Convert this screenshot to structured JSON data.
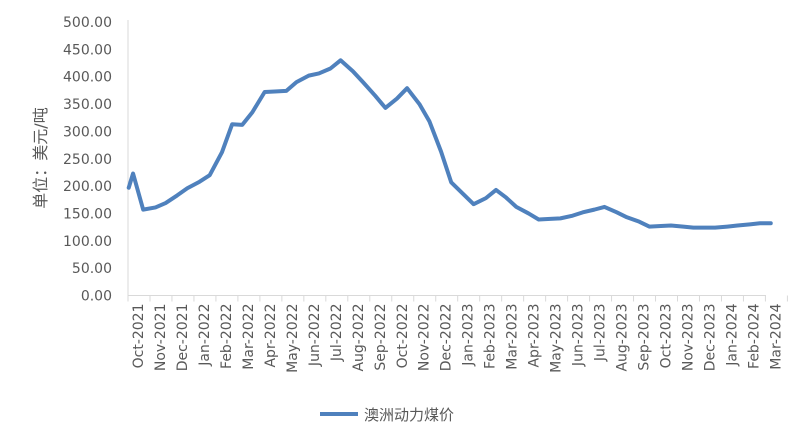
{
  "chart_data": {
    "type": "line",
    "ylabel": "单位：美元/吨",
    "ylim": [
      0,
      500
    ],
    "y_ticks": [
      "0.00",
      "50.00",
      "100.00",
      "150.00",
      "200.00",
      "250.00",
      "300.00",
      "350.00",
      "400.00",
      "450.00",
      "500.00"
    ],
    "grid": false,
    "legend_position": "bottom",
    "categories": [
      "Oct-2021",
      "Nov-2021",
      "Dec-2021",
      "Jan-2022",
      "Feb-2022",
      "Mar-2022",
      "Apr-2022",
      "May-2022",
      "Jun-2022",
      "Jul-2022",
      "Aug-2022",
      "Sep-2022",
      "Oct-2022",
      "Nov-2022",
      "Dec-2022",
      "Jan-2023",
      "Feb-2023",
      "Mar-2023",
      "Apr-2023",
      "May-2023",
      "Jun-2023",
      "Jul-2023",
      "Aug-2023",
      "Sep-2023",
      "Oct-2023",
      "Nov-2023",
      "Dec-2023",
      "Jan-2024",
      "Feb-2024",
      "Mar-2024"
    ],
    "x": [
      "2021-09-25",
      "2021-10-01",
      "2021-10-15",
      "2021-11-01",
      "2021-11-15",
      "2021-12-01",
      "2021-12-15",
      "2022-01-01",
      "2022-01-15",
      "2022-02-01",
      "2022-02-15",
      "2022-03-01",
      "2022-03-15",
      "2022-04-01",
      "2022-04-15",
      "2022-05-01",
      "2022-05-15",
      "2022-06-01",
      "2022-06-15",
      "2022-07-01",
      "2022-07-15",
      "2022-08-01",
      "2022-08-15",
      "2022-09-01",
      "2022-09-15",
      "2022-10-01",
      "2022-10-15",
      "2022-11-01",
      "2022-11-15",
      "2022-12-01",
      "2022-12-15",
      "2023-01-01",
      "2023-01-15",
      "2023-02-01",
      "2023-02-15",
      "2023-03-01",
      "2023-03-15",
      "2023-04-01",
      "2023-04-15",
      "2023-05-01",
      "2023-05-15",
      "2023-06-01",
      "2023-06-15",
      "2023-07-01",
      "2023-07-15",
      "2023-08-01",
      "2023-08-15",
      "2023-09-01",
      "2023-09-15",
      "2023-10-01",
      "2023-10-15",
      "2023-11-01",
      "2023-11-15",
      "2023-12-01",
      "2023-12-15",
      "2024-01-01",
      "2024-01-15",
      "2024-02-01",
      "2024-02-15",
      "2024-03-01"
    ],
    "series": [
      {
        "name": "澳洲动力煤价",
        "color": "#4f81bd",
        "values": [
          197,
          223,
          157,
          161,
          169,
          183,
          196,
          208,
          220,
          262,
          313,
          312,
          335,
          372,
          373,
          374,
          390,
          402,
          406,
          415,
          430,
          410,
          390,
          365,
          343,
          360,
          379,
          350,
          318,
          263,
          207,
          185,
          167,
          178,
          193,
          179,
          162,
          150,
          139,
          140,
          141,
          146,
          152,
          157,
          162,
          152,
          143,
          135,
          126,
          127,
          128,
          126,
          124,
          124,
          124,
          126,
          128,
          130,
          132,
          132
        ]
      }
    ]
  }
}
